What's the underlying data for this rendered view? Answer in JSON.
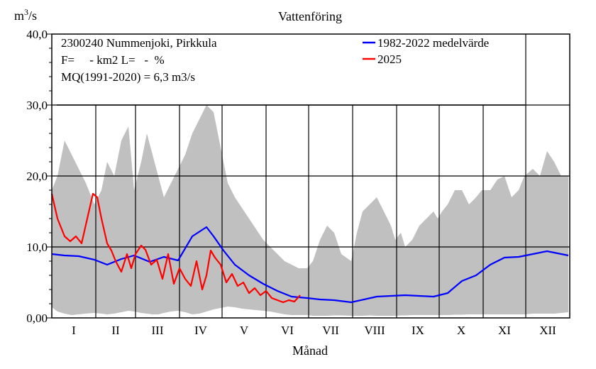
{
  "chart_data": {
    "type": "area",
    "title": "Vattenföring",
    "ylabel_main": "m",
    "ylabel_sup": "3",
    "ylabel_tail": "/s",
    "xlabel": "Månad",
    "ylim": [
      0,
      40
    ],
    "y_ticks": [
      "0,00",
      "10,0",
      "20,0",
      "30,0",
      "40,0"
    ],
    "y_tick_values": [
      0,
      10,
      20,
      30,
      40
    ],
    "months": [
      "I",
      "II",
      "III",
      "IV",
      "V",
      "VI",
      "VII",
      "VIII",
      "IX",
      "X",
      "XI",
      "XII"
    ],
    "grid": true,
    "legend_position": "top-right",
    "info_lines": [
      "2300240 Nummenjoki, Pirkkula",
      "F=     - km2 L=   -  %",
      "MQ(1991-2020) = 6,3 m3/s"
    ],
    "colors": {
      "band": "#c0c0c0",
      "mean": "#0000ff",
      "current": "#ff0000",
      "grid": "#000000"
    },
    "series": [
      {
        "name": "1982-2022 medelvärde",
        "x": [
          1,
          10,
          20,
          31,
          40,
          50,
          59,
          70,
          80,
          90,
          100,
          110,
          115,
          122,
          130,
          140,
          150,
          160,
          170,
          181,
          190,
          200,
          212,
          230,
          250,
          270,
          280,
          290,
          300,
          310,
          320,
          330,
          340,
          350,
          355,
          365
        ],
        "values": [
          9.0,
          8.8,
          8.7,
          8.2,
          7.5,
          8.3,
          8.8,
          7.9,
          8.6,
          8.1,
          11.5,
          12.8,
          11.5,
          9.5,
          7.5,
          6.0,
          4.8,
          3.8,
          3.0,
          2.8,
          2.6,
          2.5,
          2.2,
          3.0,
          3.2,
          3.0,
          3.5,
          5.2,
          6.0,
          7.5,
          8.5,
          8.6,
          9.0,
          9.4,
          9.2,
          8.8
        ]
      },
      {
        "name": "2025",
        "x": [
          1,
          5,
          10,
          14,
          18,
          22,
          26,
          30,
          33,
          36,
          40,
          43,
          46,
          50,
          54,
          57,
          60,
          64,
          67,
          71,
          75,
          79,
          83,
          87,
          91,
          95,
          99,
          103,
          107,
          110,
          113,
          116,
          120,
          124,
          128,
          132,
          136,
          140,
          144,
          148,
          152,
          156,
          160,
          164,
          168,
          172,
          176
        ],
        "values": [
          17.5,
          14.0,
          11.5,
          10.8,
          11.5,
          10.5,
          14.0,
          17.5,
          17.0,
          14.0,
          10.5,
          9.5,
          8.0,
          6.5,
          9.0,
          7.0,
          9.0,
          10.2,
          9.6,
          7.5,
          8.2,
          5.5,
          9.0,
          4.8,
          7.0,
          5.5,
          4.5,
          8.0,
          4.0,
          6.0,
          9.5,
          8.5,
          7.5,
          5.0,
          6.2,
          4.5,
          5.0,
          3.5,
          4.2,
          3.2,
          3.8,
          2.8,
          2.5,
          2.2,
          2.5,
          2.3,
          3.2
        ]
      }
    ],
    "band": {
      "name": "min-max",
      "x": [
        1,
        5,
        10,
        15,
        20,
        25,
        31,
        36,
        40,
        45,
        50,
        55,
        59,
        64,
        68,
        72,
        76,
        80,
        85,
        90,
        95,
        100,
        105,
        110,
        115,
        120,
        125,
        130,
        135,
        140,
        145,
        150,
        155,
        160,
        165,
        170,
        175,
        181,
        185,
        190,
        195,
        200,
        205,
        212,
        216,
        220,
        225,
        230,
        235,
        240,
        243,
        247,
        250,
        255,
        260,
        265,
        270,
        273,
        276,
        280,
        285,
        290,
        295,
        300,
        304,
        310,
        315,
        320,
        325,
        330,
        334,
        340,
        345,
        350,
        355,
        360,
        365
      ],
      "upper": [
        18,
        20,
        25,
        23,
        21,
        19,
        16,
        18,
        22,
        20,
        25,
        27,
        18,
        22,
        26,
        23,
        20,
        17,
        19,
        21,
        23,
        26,
        28,
        30,
        29,
        24,
        19,
        17,
        15.5,
        14,
        12.5,
        11,
        10,
        9,
        8,
        7.5,
        7,
        7,
        8,
        11,
        13,
        12,
        9,
        8,
        12,
        15,
        16,
        17,
        15,
        13,
        11,
        12,
        10,
        11,
        13,
        14,
        15,
        14,
        15,
        16,
        18,
        18,
        16,
        17,
        18,
        18,
        19.5,
        20,
        17,
        18,
        20,
        21,
        20,
        23.5,
        22,
        20,
        20
      ],
      "lower": [
        1.5,
        0.9,
        0.6,
        0.4,
        0.5,
        0.6,
        0.7,
        0.6,
        0.5,
        0.6,
        0.8,
        1.0,
        0.9,
        0.7,
        0.6,
        0.5,
        0.5,
        0.7,
        0.9,
        1.0,
        0.8,
        0.5,
        0.6,
        0.9,
        1.2,
        1.4,
        1.6,
        1.5,
        1.3,
        1.2,
        1.1,
        1.0,
        0.9,
        0.7,
        0.5,
        0.4,
        0.4,
        0.4,
        0.3,
        0.3,
        0.3,
        0.35,
        0.35,
        0.3,
        0.3,
        0.3,
        0.35,
        0.3,
        0.3,
        0.3,
        0.3,
        0.35,
        0.35,
        0.4,
        0.4,
        0.4,
        0.4,
        0.4,
        0.4,
        0.4,
        0.45,
        0.45,
        0.5,
        0.5,
        0.5,
        0.5,
        0.5,
        0.5,
        0.5,
        0.5,
        0.5,
        0.6,
        0.6,
        0.6,
        0.6,
        0.7,
        0.8
      ]
    }
  }
}
